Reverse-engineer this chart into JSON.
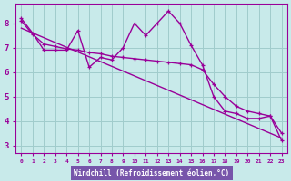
{
  "line1_x": [
    0,
    1,
    2,
    3,
    4,
    5,
    6,
    7,
    8,
    9,
    10,
    11,
    12,
    13,
    14,
    15,
    16,
    17,
    18,
    19,
    20,
    21,
    22,
    23
  ],
  "line1_y": [
    8.2,
    7.6,
    6.9,
    6.9,
    6.9,
    7.7,
    6.2,
    6.6,
    6.5,
    7.0,
    8.0,
    7.5,
    8.0,
    8.5,
    8.0,
    7.1,
    6.3,
    5.0,
    4.4,
    4.3,
    4.1,
    4.1,
    4.2,
    3.2
  ],
  "line2_x": [
    0,
    1,
    2,
    3,
    4,
    5,
    6,
    7,
    8,
    9,
    10,
    11,
    12,
    13,
    14,
    15,
    16,
    17,
    18,
    19,
    20,
    21,
    22,
    23
  ],
  "line2_y": [
    8.1,
    7.55,
    7.15,
    7.05,
    6.95,
    6.9,
    6.8,
    6.75,
    6.65,
    6.6,
    6.55,
    6.5,
    6.45,
    6.4,
    6.35,
    6.3,
    6.1,
    5.5,
    5.0,
    4.6,
    4.4,
    4.3,
    4.2,
    3.5
  ],
  "trend_x": [
    0,
    23
  ],
  "trend_y": [
    7.8,
    3.3
  ],
  "line_color": "#990099",
  "bg_color": "#c8eaea",
  "grid_color": "#a0cccc",
  "xlabel": "Windchill (Refroidissement éolien,°C)",
  "xlabel_bg": "#7755aa",
  "ylabel_ticks": [
    3,
    4,
    5,
    6,
    7,
    8
  ],
  "xtick_labels": [
    "0",
    "1",
    "2",
    "3",
    "4",
    "5",
    "6",
    "7",
    "8",
    "9",
    "10",
    "11",
    "12",
    "13",
    "14",
    "15",
    "16",
    "17",
    "18",
    "19",
    "20",
    "21",
    "22",
    "23"
  ],
  "xlim": [
    -0.5,
    23.5
  ],
  "ylim": [
    2.7,
    8.8
  ]
}
